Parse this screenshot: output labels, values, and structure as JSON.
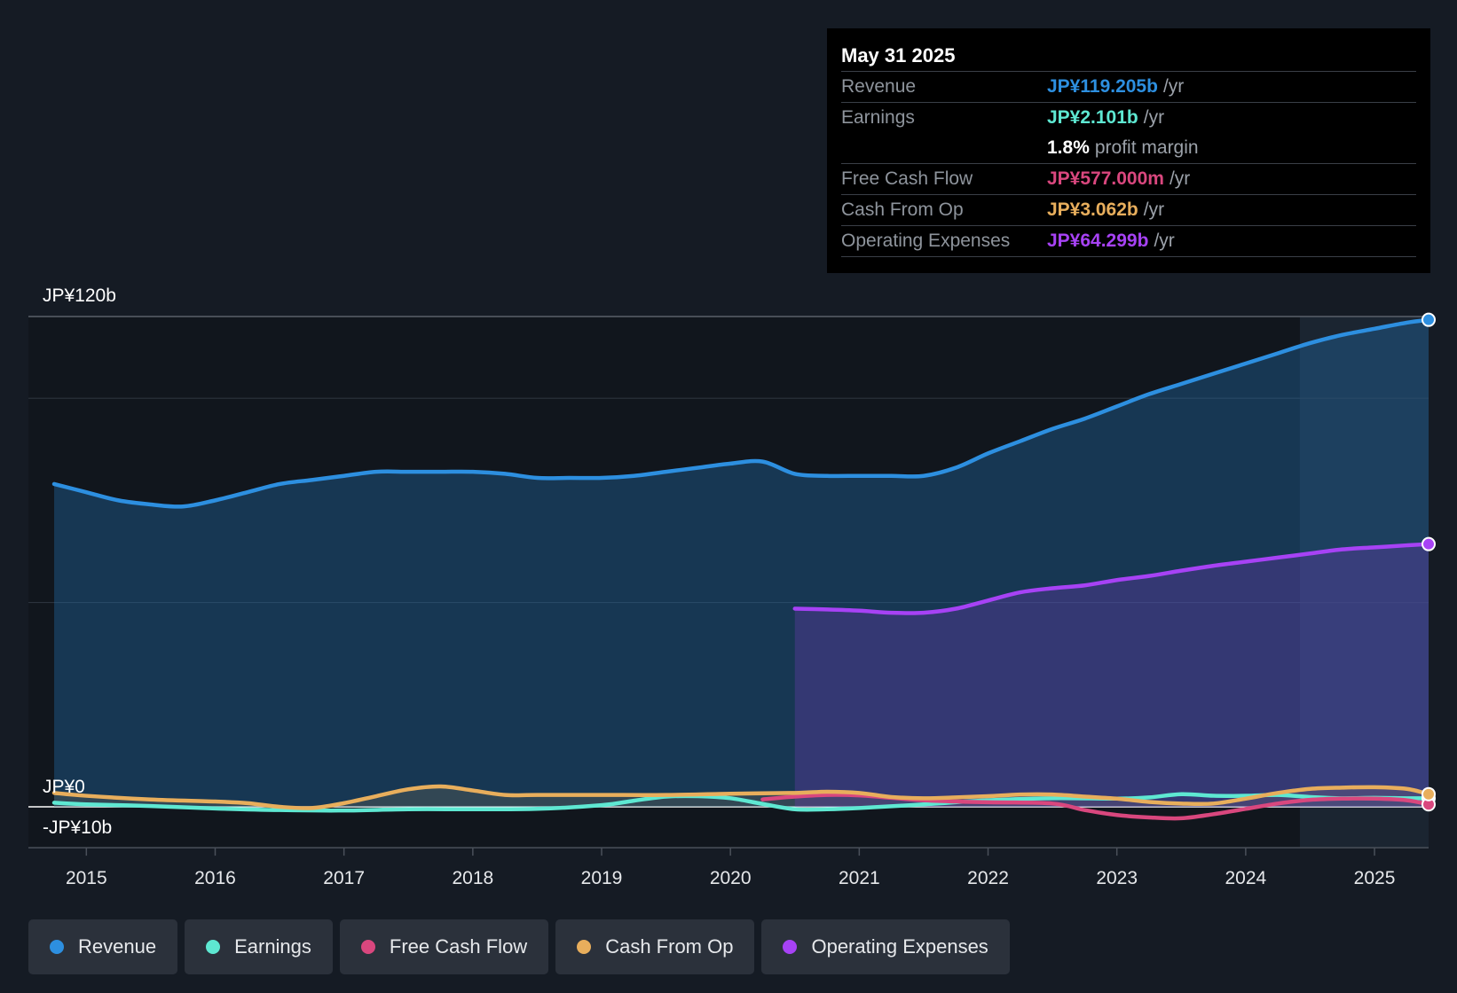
{
  "tooltip": {
    "date": "May 31 2025",
    "rows": [
      {
        "label": "Revenue",
        "value": "JP¥119.205b",
        "unit": "/yr",
        "color": "#2d8fe0"
      },
      {
        "label": "Earnings",
        "value": "JP¥2.101b",
        "unit": "/yr",
        "color": "#5ee8d2"
      },
      {
        "label": "",
        "value": "1.8%",
        "unit": "profit margin",
        "color": "#ffffff"
      },
      {
        "label": "Free Cash Flow",
        "value": "JP¥577.000m",
        "unit": "/yr",
        "color": "#d9477e"
      },
      {
        "label": "Cash From Op",
        "value": "JP¥3.062b",
        "unit": "/yr",
        "color": "#e8ae5c"
      },
      {
        "label": "Operating Expenses",
        "value": "JP¥64.299b",
        "unit": "/yr",
        "color": "#a742f5"
      }
    ]
  },
  "legend": [
    {
      "label": "Revenue",
      "color": "#2d8fe0"
    },
    {
      "label": "Earnings",
      "color": "#5ee8d2"
    },
    {
      "label": "Free Cash Flow",
      "color": "#d9477e"
    },
    {
      "label": "Cash From Op",
      "color": "#e8ae5c"
    },
    {
      "label": "Operating Expenses",
      "color": "#a742f5"
    }
  ],
  "chart_data": {
    "type": "area",
    "title": "",
    "xlabel": "",
    "ylabel": "",
    "y_top_label": "JP¥120b",
    "y_zero_label": "JP¥0",
    "y_bottom_label": "-JP¥10b",
    "ylim": [
      -10,
      120
    ],
    "xlim": [
      2014.55,
      2025.42
    ],
    "x_ticks": [
      "2015",
      "2016",
      "2017",
      "2018",
      "2019",
      "2020",
      "2021",
      "2022",
      "2023",
      "2024",
      "2025"
    ],
    "forecast_start": 2024.42,
    "series": [
      {
        "name": "Revenue",
        "color": "#2d8fe0",
        "filled": true,
        "x": [
          2014.75,
          2015.0,
          2015.25,
          2015.5,
          2015.75,
          2016.0,
          2016.25,
          2016.5,
          2016.75,
          2017.0,
          2017.25,
          2017.5,
          2017.75,
          2018.0,
          2018.25,
          2018.5,
          2018.75,
          2019.0,
          2019.25,
          2019.5,
          2019.75,
          2020.0,
          2020.25,
          2020.5,
          2020.75,
          2021.0,
          2021.25,
          2021.5,
          2021.75,
          2022.0,
          2022.25,
          2022.5,
          2022.75,
          2023.0,
          2023.25,
          2023.5,
          2023.75,
          2024.0,
          2024.25,
          2024.5,
          2024.75,
          2025.0,
          2025.25,
          2025.42
        ],
        "values": [
          79,
          77,
          75,
          74,
          73.5,
          75,
          77,
          79,
          80,
          81,
          82,
          82,
          82,
          82,
          81.5,
          80.5,
          80.5,
          80.5,
          81,
          82,
          83,
          84,
          84.5,
          81.5,
          81,
          81,
          81,
          81,
          83,
          86.5,
          89.5,
          92.5,
          95,
          98,
          101,
          103.5,
          106,
          108.5,
          111,
          113.5,
          115.5,
          117,
          118.5,
          119.2
        ]
      },
      {
        "name": "Earnings",
        "color": "#5ee8d2",
        "filled": false,
        "x": [
          2014.75,
          2015.0,
          2015.5,
          2016.0,
          2016.5,
          2017.0,
          2017.5,
          2018.0,
          2018.5,
          2019.0,
          2019.25,
          2019.5,
          2019.75,
          2020.0,
          2020.25,
          2020.5,
          2020.75,
          2021.0,
          2021.5,
          2022.0,
          2022.5,
          2023.0,
          2023.25,
          2023.5,
          2023.75,
          2024.0,
          2024.25,
          2024.5,
          2024.75,
          2025.0,
          2025.25,
          2025.42
        ],
        "values": [
          1,
          0.6,
          0.2,
          -0.4,
          -0.8,
          -0.9,
          -0.6,
          -0.6,
          -0.5,
          0.4,
          1.5,
          2.5,
          2.6,
          2.1,
          0.7,
          -0.6,
          -0.6,
          -0.3,
          0.6,
          1.6,
          2.1,
          2.0,
          2.3,
          3.1,
          2.7,
          2.7,
          2.9,
          2.4,
          2.1,
          2.2,
          2.1,
          2.1
        ]
      },
      {
        "name": "Free Cash Flow",
        "color": "#d9477e",
        "filled": false,
        "x": [
          2020.25,
          2020.5,
          2020.75,
          2021.0,
          2021.25,
          2021.5,
          2021.75,
          2022.0,
          2022.5,
          2022.75,
          2023.0,
          2023.25,
          2023.5,
          2023.75,
          2024.0,
          2024.25,
          2024.5,
          2024.75,
          2025.0,
          2025.25,
          2025.42
        ],
        "values": [
          1.8,
          2.5,
          2.9,
          2.8,
          2.2,
          1.6,
          1.3,
          1.1,
          0.8,
          -0.8,
          -2,
          -2.6,
          -2.8,
          -1.8,
          -0.5,
          0.8,
          1.7,
          2,
          2,
          1.6,
          0.6
        ]
      },
      {
        "name": "Cash From Op",
        "color": "#e8ae5c",
        "filled": true,
        "x": [
          2014.75,
          2015.0,
          2015.5,
          2016.0,
          2016.25,
          2016.5,
          2016.75,
          2017.0,
          2017.25,
          2017.5,
          2017.75,
          2018.0,
          2018.25,
          2018.5,
          2019.0,
          2019.5,
          2020.0,
          2020.5,
          2020.75,
          2021.0,
          2021.25,
          2021.5,
          2021.75,
          2022.0,
          2022.25,
          2022.5,
          2022.75,
          2023.0,
          2023.25,
          2023.5,
          2023.75,
          2024.0,
          2024.25,
          2024.5,
          2024.75,
          2025.0,
          2025.25,
          2025.42
        ],
        "values": [
          3.4,
          2.7,
          1.8,
          1.3,
          0.9,
          0,
          -0.3,
          0.9,
          2.6,
          4.3,
          5.0,
          4.0,
          2.9,
          2.9,
          2.9,
          2.9,
          3.2,
          3.4,
          3.7,
          3.4,
          2.4,
          2.1,
          2.3,
          2.6,
          3.0,
          3.0,
          2.5,
          2.0,
          1.2,
          0.8,
          0.8,
          2.0,
          3.4,
          4.4,
          4.7,
          4.8,
          4.4,
          3.1
        ]
      },
      {
        "name": "Operating Expenses",
        "color": "#a742f5",
        "filled": true,
        "x": [
          2020.5,
          2020.75,
          2021.0,
          2021.25,
          2021.5,
          2021.75,
          2022.0,
          2022.25,
          2022.5,
          2022.75,
          2023.0,
          2023.25,
          2023.5,
          2023.75,
          2024.0,
          2024.25,
          2024.5,
          2024.75,
          2025.0,
          2025.25,
          2025.42
        ],
        "values": [
          48.5,
          48.3,
          48.0,
          47.5,
          47.5,
          48.5,
          50.5,
          52.5,
          53.5,
          54.2,
          55.5,
          56.5,
          57.8,
          59.0,
          60.0,
          61.0,
          62.0,
          63.0,
          63.5,
          64.0,
          64.3
        ]
      }
    ]
  }
}
